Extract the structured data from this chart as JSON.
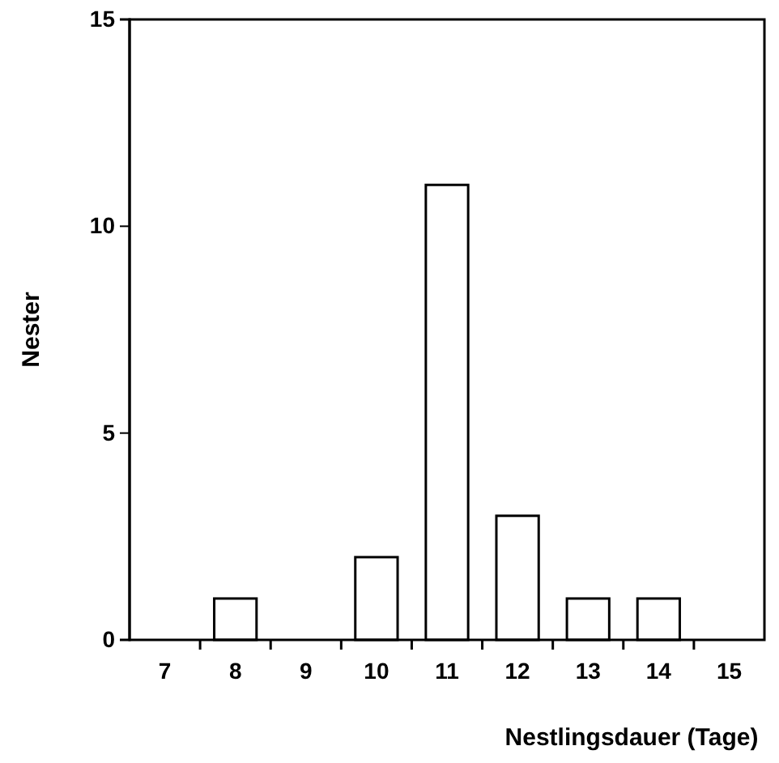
{
  "chart_data": {
    "type": "bar",
    "xlabel": "Nestlingsdauer (Tage)",
    "ylabel": "Nester",
    "categories": [
      "7",
      "8",
      "9",
      "10",
      "11",
      "12",
      "13",
      "14",
      "15"
    ],
    "values": [
      0,
      1,
      0,
      2,
      11,
      3,
      1,
      1,
      0
    ],
    "color": "#ffffff",
    "ylim": [
      0,
      15
    ],
    "yticks": [
      0,
      5,
      10,
      15
    ],
    "grid": false
  }
}
